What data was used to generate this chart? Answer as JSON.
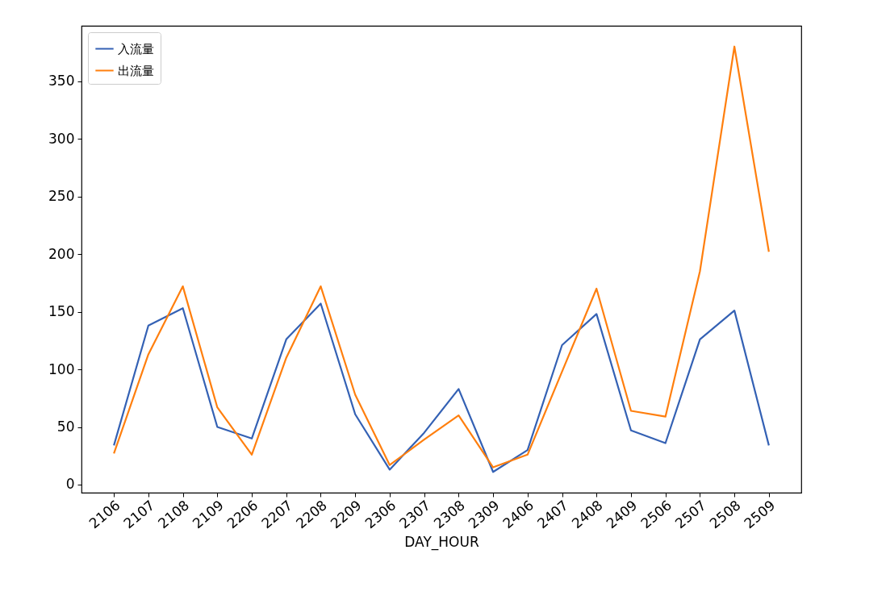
{
  "chart_data": {
    "type": "line",
    "xlabel": "DAY_HOUR",
    "categories": [
      "2106",
      "2107",
      "2108",
      "2109",
      "2206",
      "2207",
      "2208",
      "2209",
      "2306",
      "2307",
      "2308",
      "2309",
      "2406",
      "2407",
      "2408",
      "2409",
      "2506",
      "2507",
      "2508",
      "2509"
    ],
    "series": [
      {
        "name": "入流量",
        "color": "#3461b4",
        "values": [
          34,
          138,
          153,
          50,
          40,
          126,
          157,
          61,
          13,
          45,
          83,
          11,
          30,
          121,
          148,
          47,
          36,
          126,
          151,
          34
        ]
      },
      {
        "name": "出流量",
        "color": "#ff7f0e",
        "values": [
          27,
          113,
          172,
          67,
          26,
          110,
          172,
          78,
          17,
          39,
          60,
          15,
          26,
          98,
          170,
          64,
          59,
          185,
          380,
          202
        ]
      }
    ],
    "ylim": [
      -7,
      398
    ],
    "yticks": [
      0,
      50,
      100,
      150,
      200,
      250,
      300,
      350
    ],
    "legend": "top left",
    "grid": false,
    "marker": "none",
    "line_style": "solid"
  }
}
